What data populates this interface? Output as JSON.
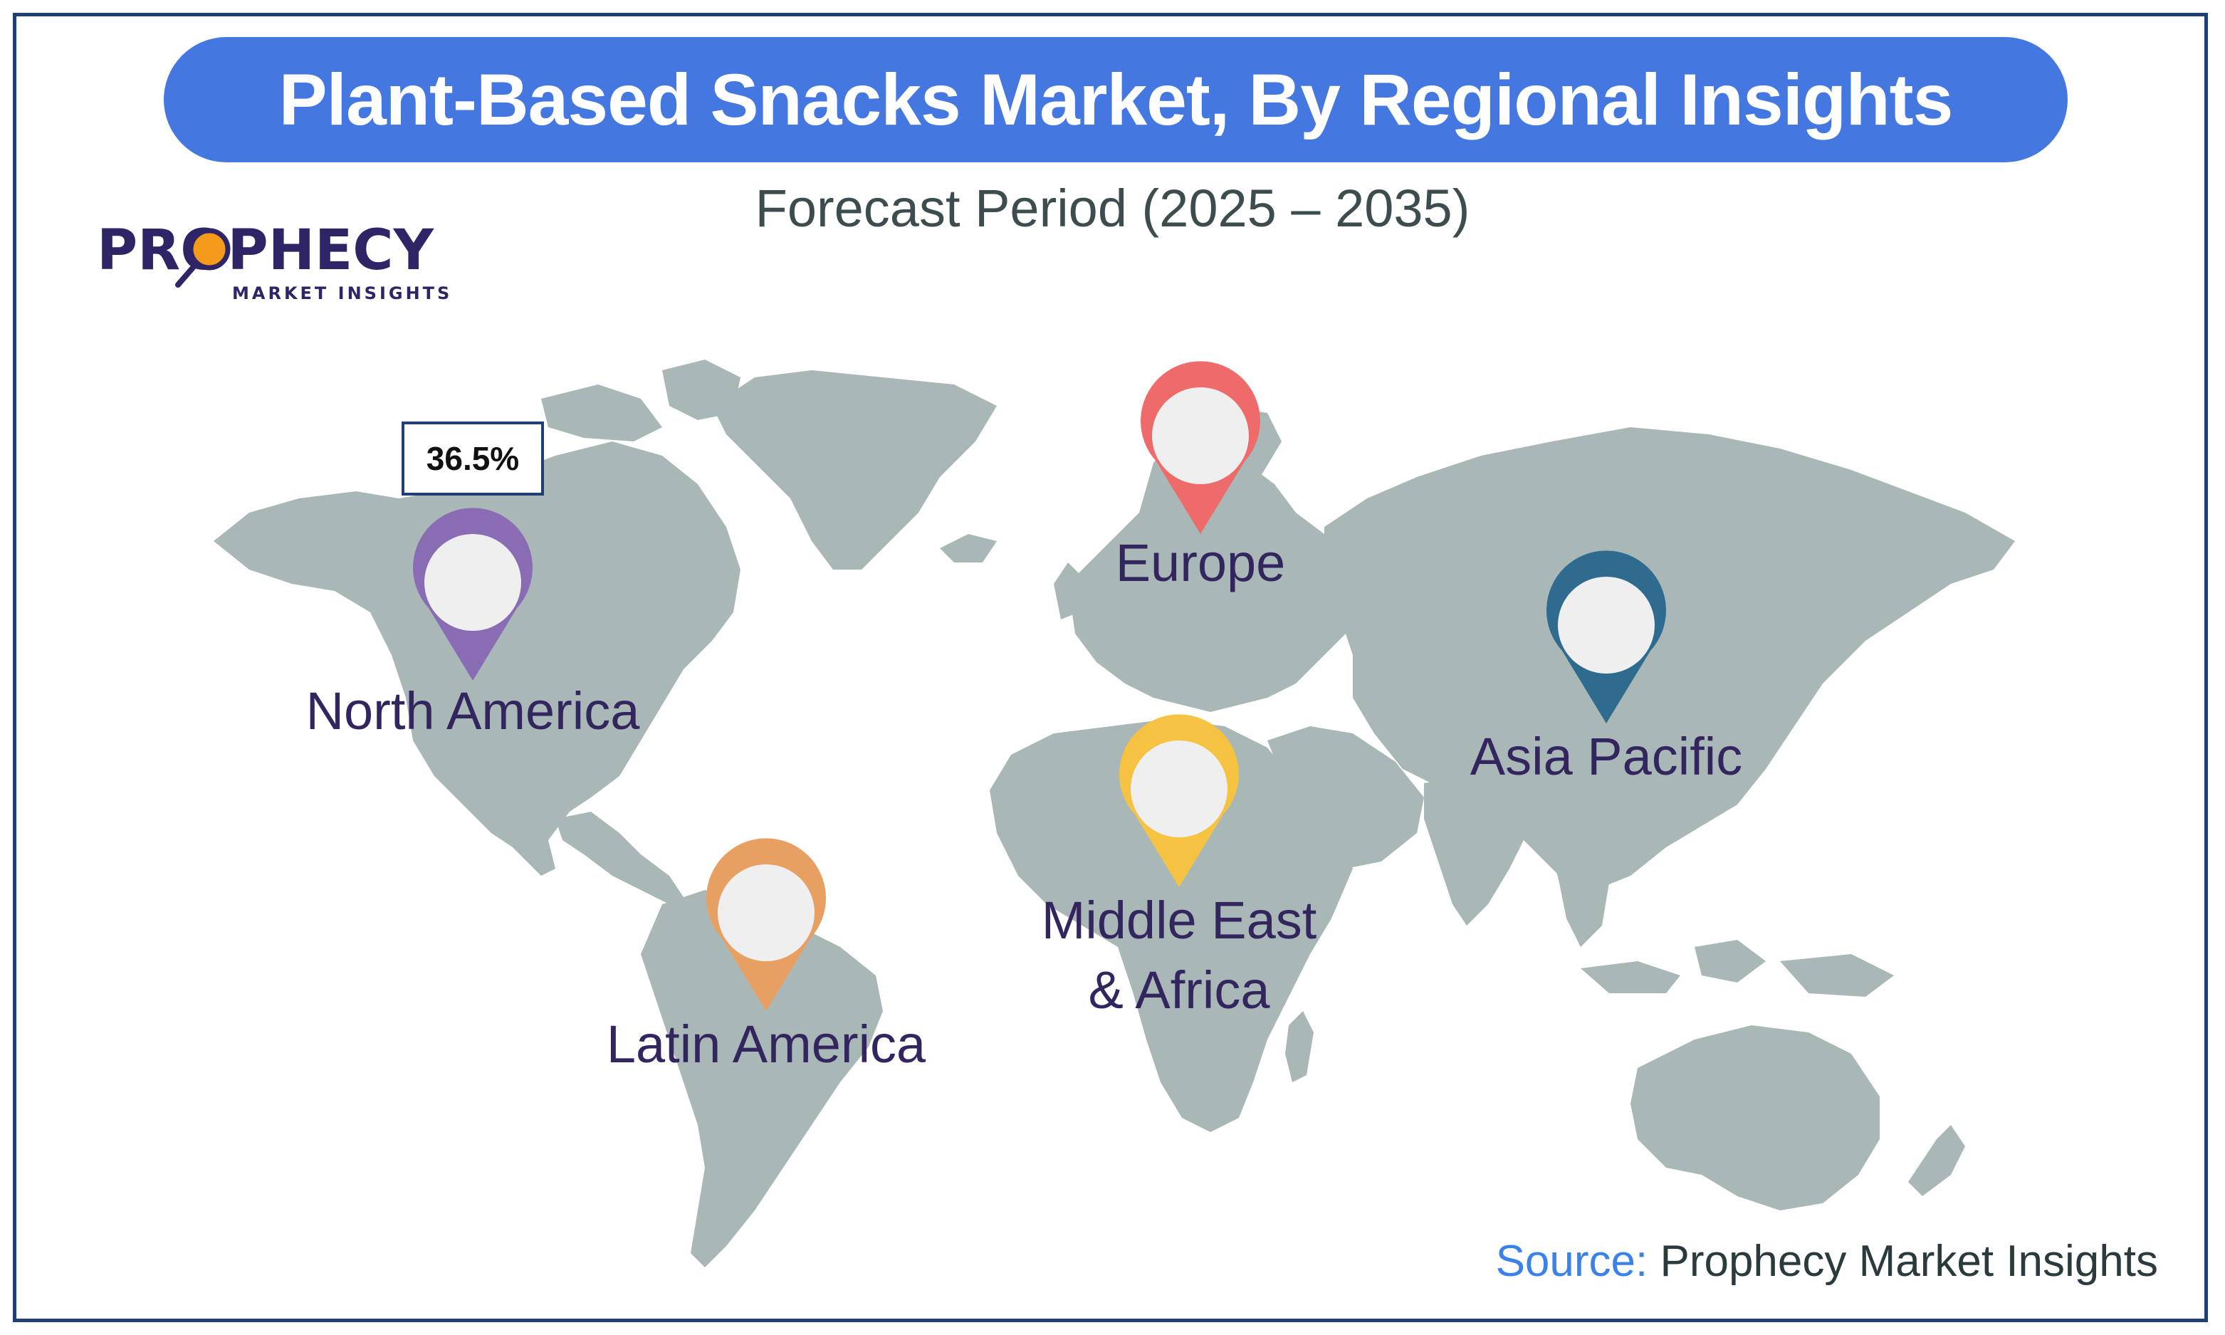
{
  "title": "Plant-Based Snacks Market, By Regional Insights",
  "subtitle": "Forecast Period (2025 – 2035)",
  "logo": {
    "brand": "PROPHECY",
    "tagline": "MARKET INSIGHTS"
  },
  "source": {
    "label": "Source:",
    "name": "Prophecy Market Insights"
  },
  "share_badge": "36.5%",
  "regions": [
    {
      "id": "north-america",
      "label": "North America",
      "color": "#8a6cb5"
    },
    {
      "id": "europe",
      "label": "Europe",
      "color": "#ef6b6b"
    },
    {
      "id": "asia-pacific",
      "label": "Asia Pacific",
      "color": "#2f6a8f"
    },
    {
      "id": "middle-east-africa",
      "label_line1": "Middle East",
      "label_line2": "& Africa",
      "color": "#f5c242"
    },
    {
      "id": "latin-america",
      "label": "Latin America",
      "color": "#e8a062"
    }
  ],
  "colors": {
    "land": "#a9b8b7",
    "title_banner": "#4478e0",
    "frame": "#1f3f74",
    "pin_fill": "#efefef",
    "logo_purple": "#2e2566",
    "logo_orange": "#f59a1b"
  }
}
